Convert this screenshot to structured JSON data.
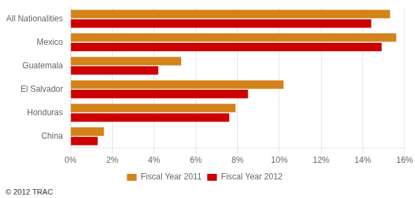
{
  "chart_data": {
    "type": "bar",
    "orientation": "horizontal",
    "categories": [
      "All Nationalities",
      "Mexico",
      "Guatemala",
      "El Salvador",
      "Honduras",
      "China"
    ],
    "series": [
      {
        "name": "Fiscal Year 2011",
        "color": "#D4821A",
        "values": [
          15.3,
          15.6,
          5.3,
          10.2,
          7.9,
          1.6
        ]
      },
      {
        "name": "Fiscal Year 2012",
        "color": "#CC0000",
        "values": [
          14.4,
          14.9,
          4.2,
          8.5,
          7.6,
          1.3
        ]
      }
    ],
    "xlim": [
      0,
      16
    ],
    "xticks": [
      {
        "value": 0,
        "label": "0%"
      },
      {
        "value": 2,
        "label": "2%"
      },
      {
        "value": 4,
        "label": "4%"
      },
      {
        "value": 6,
        "label": "6%"
      },
      {
        "value": 8,
        "label": "8%"
      },
      {
        "value": 10,
        "label": "10%"
      },
      {
        "value": 12,
        "label": "12%"
      },
      {
        "value": 14,
        "label": "14%"
      },
      {
        "value": 16,
        "label": "16%"
      }
    ],
    "grid": true,
    "legend": "bottom",
    "annotations": [
      "© 2012 TRAC"
    ]
  }
}
